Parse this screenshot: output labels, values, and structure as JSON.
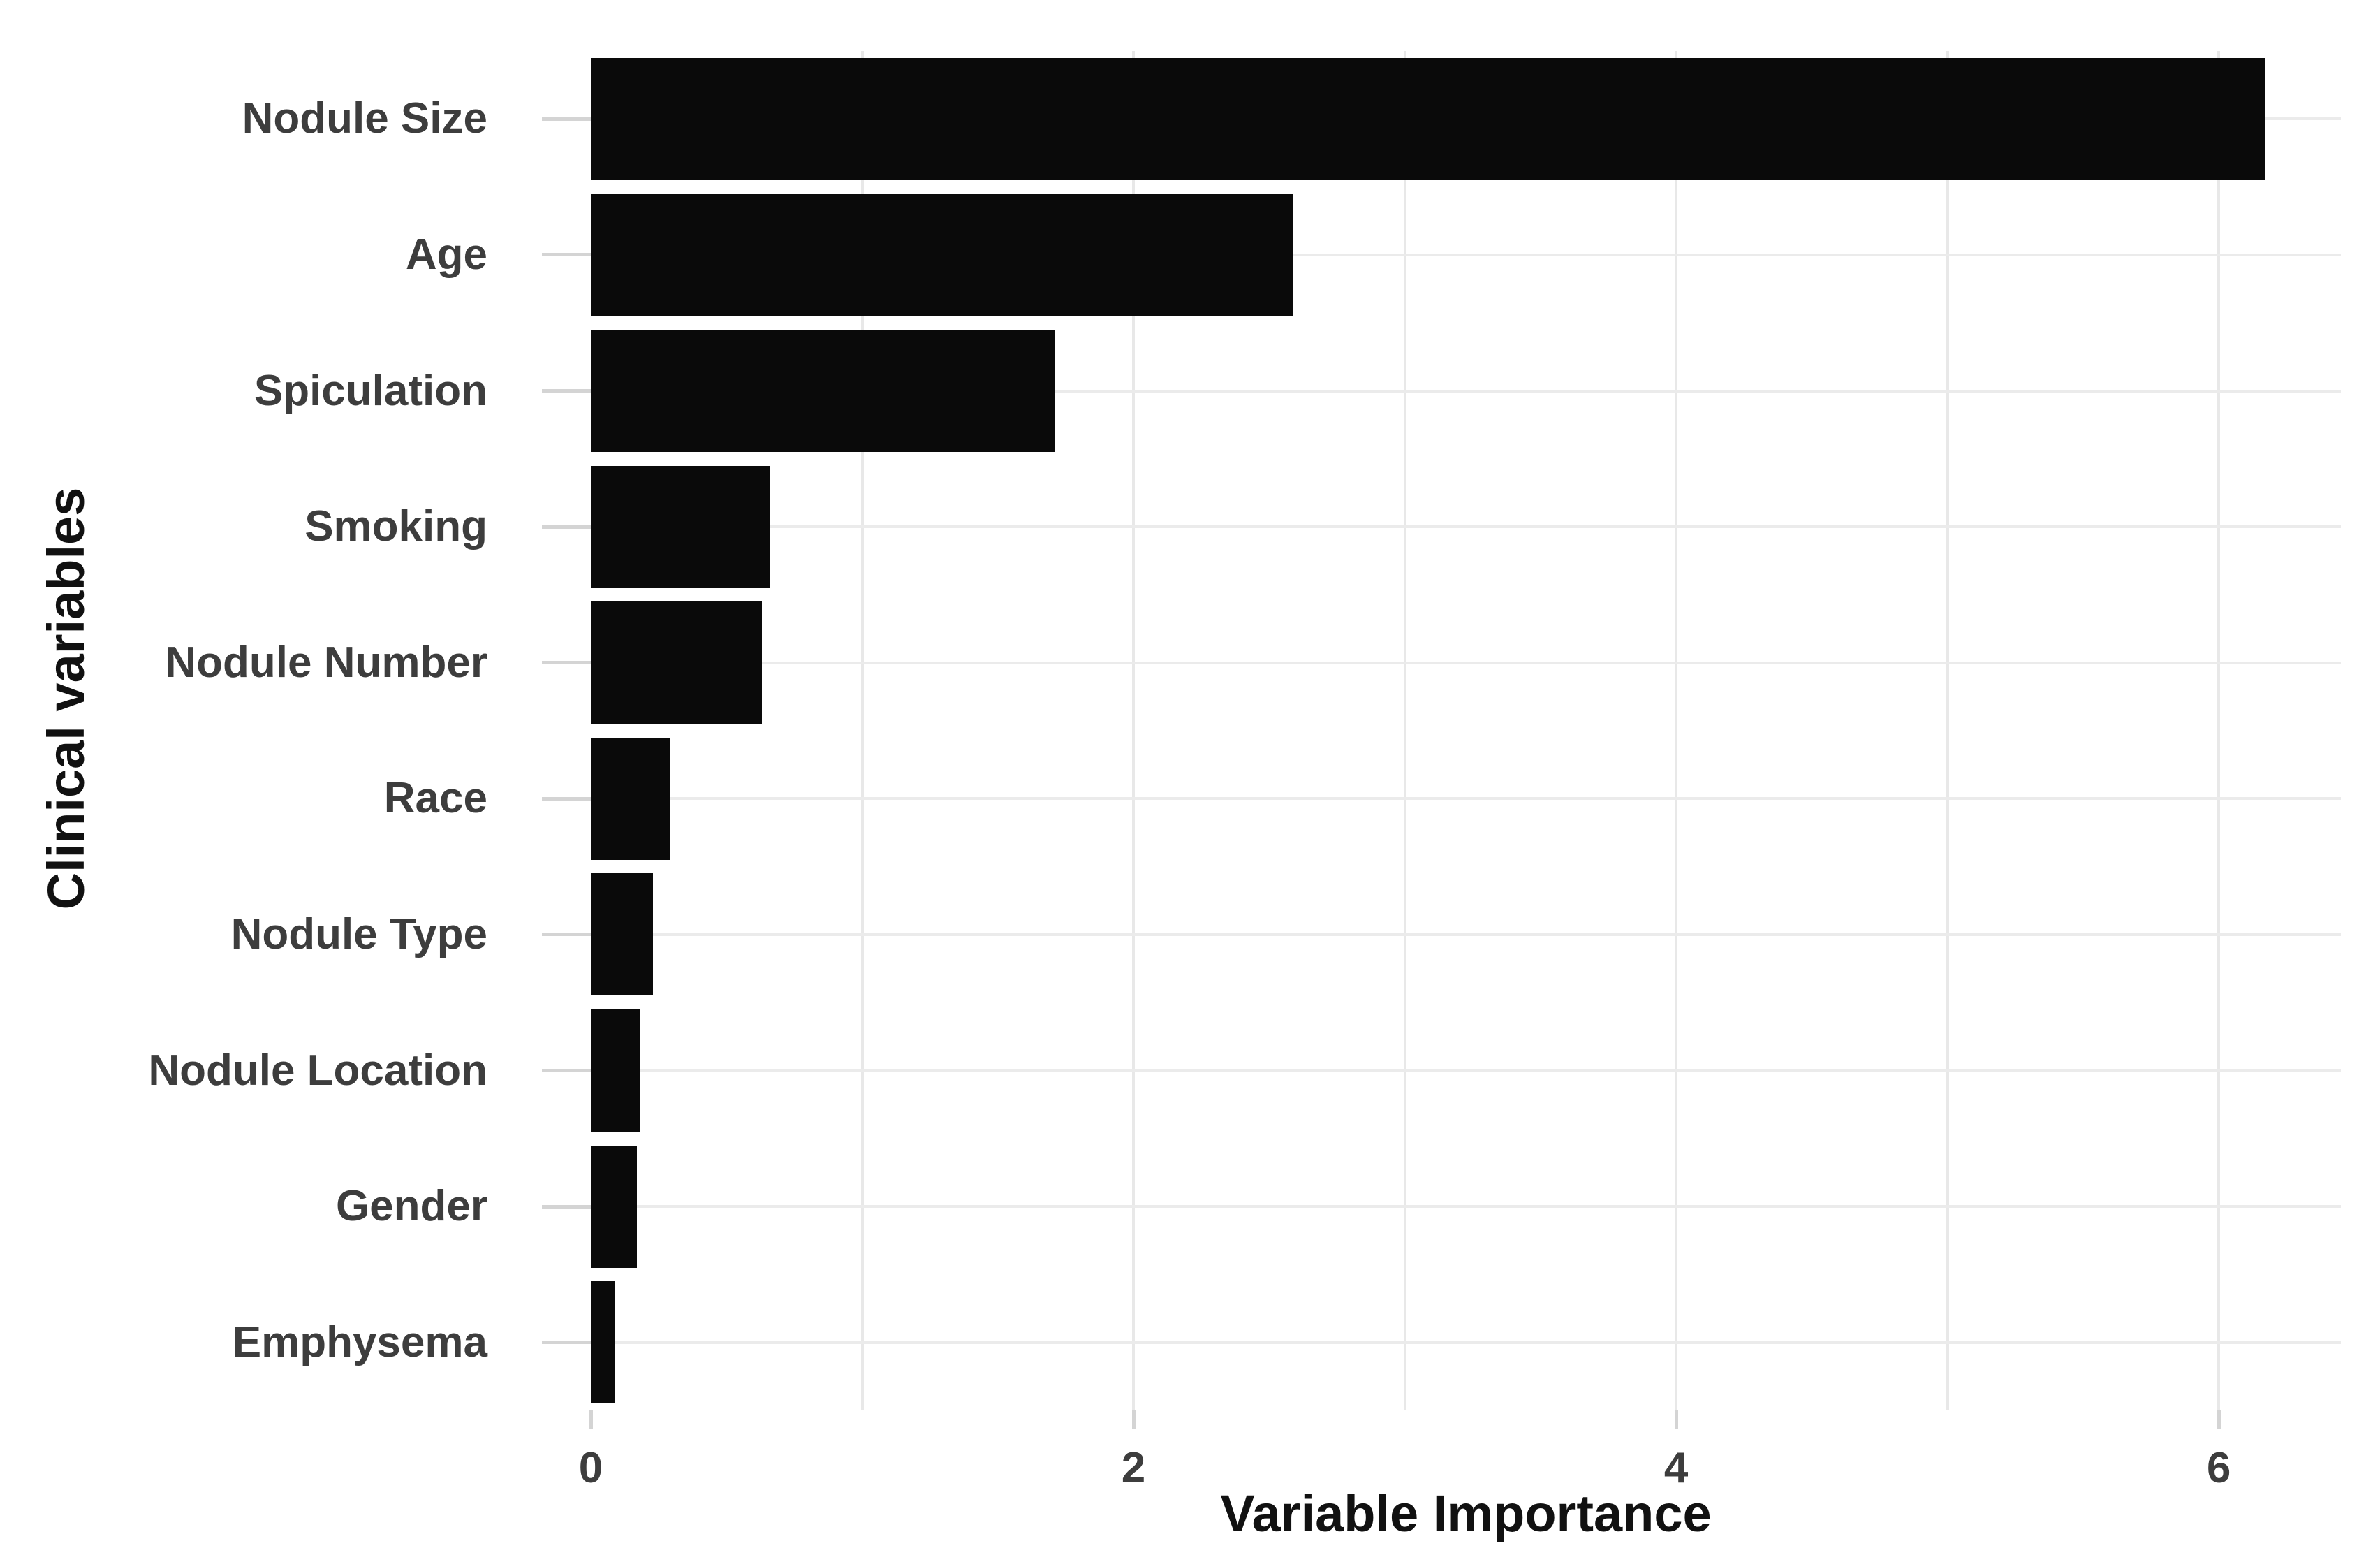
{
  "chart_data": {
    "type": "bar",
    "orientation": "horizontal",
    "title": "",
    "xlabel": "Variable Importance",
    "ylabel": "Clinical variables",
    "categories": [
      "Nodule Size",
      "Age",
      "Spiculation",
      "Smoking",
      "Nodule Number",
      "Race",
      "Nodule Type",
      "Nodule Location",
      "Gender",
      "Emphysema"
    ],
    "values": [
      6.17,
      2.59,
      1.71,
      0.66,
      0.63,
      0.29,
      0.23,
      0.18,
      0.17,
      0.09
    ],
    "x_tick_labels": [
      "0",
      "2",
      "4",
      "6"
    ],
    "x_tick_values": [
      0,
      2,
      4,
      6
    ],
    "x_gridline_values": [
      1,
      2,
      3,
      4,
      5,
      6
    ],
    "xlim": [
      0,
      6.45
    ],
    "grid": true,
    "legend": false,
    "colors": {
      "bar": "#0a0a0a",
      "gridline": "#e8e8e8",
      "tick": "#d4d4d4",
      "tick_label": "#3d3d3d",
      "axis_title": "#111111",
      "background": "#ffffff"
    }
  }
}
